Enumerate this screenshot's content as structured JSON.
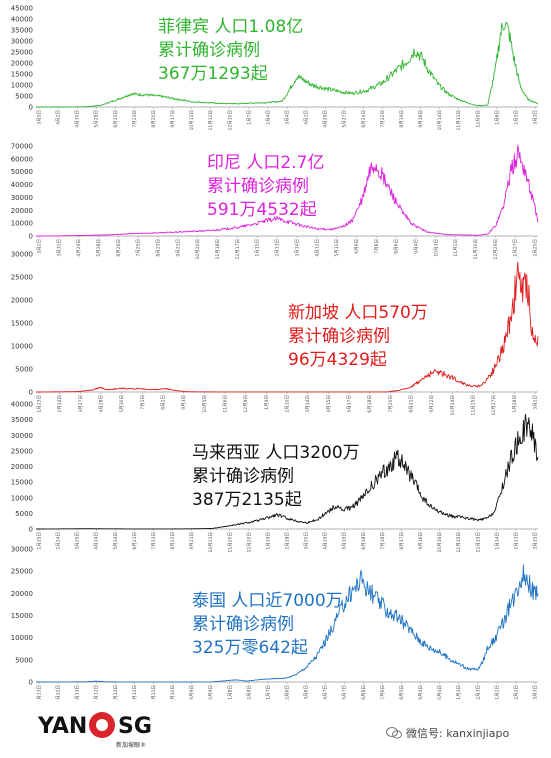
{
  "chart_data": [
    {
      "type": "line",
      "country": "菲律宾",
      "annotation": [
        "菲律宾 人口1.08亿",
        "累计确诊病例",
        "367万1293起"
      ],
      "color": "#2fb52f",
      "ylim": [
        0,
        45000
      ],
      "yticks": [
        0,
        5000,
        10000,
        15000,
        20000,
        25000,
        30000,
        35000,
        40000,
        45000
      ],
      "x_labels": [
        "3月5日",
        "4月2日",
        "4月30日",
        "5月28日",
        "6月25日",
        "7月23日",
        "8月20日",
        "9月17日",
        "10月15日",
        "11月12日",
        "12月10日",
        "1月7日",
        "2月4日",
        "3月4日",
        "4月1日",
        "4月29日",
        "5月27日",
        "6月24日",
        "7月22日",
        "8月19日",
        "9月16日",
        "10月14日",
        "11月11日",
        "12月9日",
        "1月6日",
        "2月3日",
        "3月3日"
      ],
      "keypoints": [
        [
          0,
          0
        ],
        [
          0.06,
          10
        ],
        [
          0.1,
          120
        ],
        [
          0.13,
          800
        ],
        [
          0.16,
          3200
        ],
        [
          0.19,
          6000
        ],
        [
          0.22,
          5500
        ],
        [
          0.25,
          4800
        ],
        [
          0.28,
          3600
        ],
        [
          0.31,
          2400
        ],
        [
          0.34,
          2000
        ],
        [
          0.37,
          1600
        ],
        [
          0.4,
          1500
        ],
        [
          0.43,
          1800
        ],
        [
          0.46,
          2000
        ],
        [
          0.49,
          2600
        ],
        [
          0.5,
          6000
        ],
        [
          0.52,
          14000
        ],
        [
          0.55,
          10000
        ],
        [
          0.58,
          8200
        ],
        [
          0.61,
          6800
        ],
        [
          0.63,
          6200
        ],
        [
          0.66,
          7600
        ],
        [
          0.69,
          11000
        ],
        [
          0.72,
          17000
        ],
        [
          0.74,
          21000
        ],
        [
          0.755,
          26000
        ],
        [
          0.77,
          22000
        ],
        [
          0.78,
          17500
        ],
        [
          0.8,
          10500
        ],
        [
          0.82,
          6200
        ],
        [
          0.84,
          3600
        ],
        [
          0.86,
          1900
        ],
        [
          0.875,
          800
        ],
        [
          0.885,
          600
        ],
        [
          0.9,
          900
        ],
        [
          0.915,
          17000
        ],
        [
          0.925,
          33000
        ],
        [
          0.933,
          39000
        ],
        [
          0.942,
          34000
        ],
        [
          0.952,
          22000
        ],
        [
          0.965,
          9000
        ],
        [
          0.98,
          3500
        ],
        [
          1,
          1500
        ]
      ],
      "noise": 0.12
    },
    {
      "type": "line",
      "country": "印尼",
      "annotation": [
        "印尼  人口2.7亿",
        "累计确诊病例",
        "591万4532起"
      ],
      "color": "#dd22dd",
      "ylim": [
        0,
        70000
      ],
      "yticks": [
        0,
        10000,
        20000,
        30000,
        40000,
        50000,
        60000,
        70000
      ],
      "x_labels": [
        "3月2日",
        "3月31日",
        "4月29日",
        "5月28日",
        "6月26日",
        "7月25日",
        "8月23日",
        "9月21日",
        "10月20日",
        "11月18日",
        "12月17日",
        "1月15日",
        "2月13日",
        "3月14日",
        "4月12日",
        "5月11日",
        "6月9日",
        "7月8日",
        "8月6日",
        "9月4日",
        "10月3日",
        "11月1日",
        "11月30日",
        "12月29日",
        "1月27日",
        "2月25日"
      ],
      "keypoints": [
        [
          0,
          0
        ],
        [
          0.05,
          150
        ],
        [
          0.1,
          500
        ],
        [
          0.15,
          1000
        ],
        [
          0.2,
          2000
        ],
        [
          0.25,
          2500
        ],
        [
          0.3,
          3400
        ],
        [
          0.35,
          4300
        ],
        [
          0.4,
          6500
        ],
        [
          0.43,
          8800
        ],
        [
          0.46,
          12000
        ],
        [
          0.48,
          13500
        ],
        [
          0.5,
          11500
        ],
        [
          0.53,
          8000
        ],
        [
          0.56,
          5500
        ],
        [
          0.59,
          5200
        ],
        [
          0.61,
          7000
        ],
        [
          0.63,
          12000
        ],
        [
          0.65,
          28000
        ],
        [
          0.665,
          50000
        ],
        [
          0.675,
          56000
        ],
        [
          0.69,
          46000
        ],
        [
          0.71,
          32000
        ],
        [
          0.73,
          18000
        ],
        [
          0.75,
          9000
        ],
        [
          0.78,
          3000
        ],
        [
          0.82,
          1000
        ],
        [
          0.86,
          800
        ],
        [
          0.88,
          500
        ],
        [
          0.9,
          1500
        ],
        [
          0.915,
          8000
        ],
        [
          0.93,
          22000
        ],
        [
          0.945,
          48000
        ],
        [
          0.96,
          65000
        ],
        [
          0.975,
          50000
        ],
        [
          0.99,
          28000
        ],
        [
          1,
          12000
        ]
      ],
      "noise": 0.14
    },
    {
      "type": "line",
      "country": "新加坡",
      "annotation": [
        "新加坡  人口570万",
        "累计确诊病例",
        "96万4329起"
      ],
      "color": "#e01b1b",
      "ylim": [
        0,
        30000
      ],
      "yticks": [
        0,
        5000,
        10000,
        15000,
        20000,
        25000,
        30000
      ],
      "x_labels": [
        "1月23日",
        "2月24日",
        "3月27日",
        "4月28日",
        "5月30日",
        "7月1日",
        "8月2日",
        "9月3日",
        "10月5日",
        "11月6日",
        "12月8日",
        "1月9日",
        "2月10日",
        "3月14日",
        "4月15日",
        "5月17日",
        "6月18日",
        "7月20日",
        "8月21日",
        "9月22日",
        "10月24日",
        "11月25日",
        "12月27日",
        "1月28日",
        "3月1日"
      ],
      "keypoints": [
        [
          0,
          0
        ],
        [
          0.08,
          80
        ],
        [
          0.11,
          400
        ],
        [
          0.13,
          1000
        ],
        [
          0.14,
          500
        ],
        [
          0.17,
          800
        ],
        [
          0.2,
          700
        ],
        [
          0.24,
          500
        ],
        [
          0.26,
          700
        ],
        [
          0.28,
          300
        ],
        [
          0.3,
          60
        ],
        [
          0.35,
          30
        ],
        [
          0.5,
          20
        ],
        [
          0.7,
          30
        ],
        [
          0.72,
          300
        ],
        [
          0.74,
          800
        ],
        [
          0.76,
          2000
        ],
        [
          0.78,
          3600
        ],
        [
          0.8,
          4500
        ],
        [
          0.82,
          3600
        ],
        [
          0.84,
          2500
        ],
        [
          0.86,
          1500
        ],
        [
          0.88,
          1200
        ],
        [
          0.89,
          1700
        ],
        [
          0.91,
          4500
        ],
        [
          0.925,
          8000
        ],
        [
          0.935,
          11000
        ],
        [
          0.945,
          16000
        ],
        [
          0.955,
          22000
        ],
        [
          0.962,
          26000
        ],
        [
          0.97,
          21000
        ],
        [
          0.978,
          24000
        ],
        [
          0.985,
          17000
        ],
        [
          0.99,
          11000
        ]
      ],
      "noise": 0.18
    },
    {
      "type": "line",
      "country": "马来西亚",
      "annotation": [
        "马来西亚  人口3200万",
        "累计确诊病例",
        "387万2135起"
      ],
      "color": "#111111",
      "ylim": [
        0,
        40000
      ],
      "yticks": [
        0,
        5000,
        10000,
        15000,
        20000,
        25000,
        30000,
        35000,
        40000
      ],
      "x_labels": [
        "1月25日",
        "2月24日",
        "3月25日",
        "4月24日",
        "5月24日",
        "6月23日",
        "7月23日",
        "8月22日",
        "9月21日",
        "10月21日",
        "11月20日",
        "12月20日",
        "1月19日",
        "2月18日",
        "3月20日",
        "4月19日",
        "5月19日",
        "6月18日",
        "7月18日",
        "8月17日",
        "9月16日",
        "10月16日",
        "11月15日",
        "12月15日",
        "1月14日",
        "2月13日",
        "3月15日"
      ],
      "keypoints": [
        [
          0,
          0
        ],
        [
          0.1,
          100
        ],
        [
          0.2,
          30
        ],
        [
          0.3,
          50
        ],
        [
          0.35,
          150
        ],
        [
          0.38,
          900
        ],
        [
          0.42,
          2000
        ],
        [
          0.45,
          3000
        ],
        [
          0.48,
          4600
        ],
        [
          0.5,
          3500
        ],
        [
          0.52,
          2500
        ],
        [
          0.54,
          2000
        ],
        [
          0.56,
          3000
        ],
        [
          0.58,
          5500
        ],
        [
          0.6,
          7500
        ],
        [
          0.61,
          6000
        ],
        [
          0.63,
          7000
        ],
        [
          0.65,
          10000
        ],
        [
          0.67,
          14000
        ],
        [
          0.69,
          18000
        ],
        [
          0.71,
          21000
        ],
        [
          0.72,
          23500
        ],
        [
          0.735,
          20000
        ],
        [
          0.75,
          16000
        ],
        [
          0.77,
          10000
        ],
        [
          0.79,
          6500
        ],
        [
          0.81,
          5000
        ],
        [
          0.83,
          4000
        ],
        [
          0.85,
          3700
        ],
        [
          0.87,
          3200
        ],
        [
          0.88,
          2800
        ],
        [
          0.9,
          3500
        ],
        [
          0.915,
          6000
        ],
        [
          0.93,
          14000
        ],
        [
          0.945,
          22000
        ],
        [
          0.96,
          28000
        ],
        [
          0.975,
          33000
        ],
        [
          0.99,
          30000
        ],
        [
          1,
          23000
        ]
      ],
      "noise": 0.13
    },
    {
      "type": "line",
      "country": "泰国",
      "annotation": [
        "泰国  人口近7000万",
        "累计确诊病例",
        "325万零642起"
      ],
      "color": "#1f73c4",
      "ylim": [
        0,
        30000
      ],
      "yticks": [
        0,
        5000,
        10000,
        15000,
        20000,
        25000,
        30000
      ],
      "x_labels": [
        "1月13日",
        "2月12日",
        "3月13日",
        "4月12日",
        "5月12日",
        "6月11日",
        "7月11日",
        "8月10日",
        "9月9日",
        "10月9日",
        "11月8日",
        "12月8日",
        "1月7日",
        "2月6日",
        "3月8日",
        "4月7日",
        "5月7日",
        "6月6日",
        "7月6日",
        "8月5日",
        "9月4日",
        "10月4日",
        "11月3日",
        "12月3日",
        "1月2日",
        "2月1日",
        "3月3日"
      ],
      "keypoints": [
        [
          0,
          0
        ],
        [
          0.1,
          50
        ],
        [
          0.12,
          200
        ],
        [
          0.14,
          40
        ],
        [
          0.2,
          20
        ],
        [
          0.3,
          10
        ],
        [
          0.35,
          30
        ],
        [
          0.4,
          500
        ],
        [
          0.42,
          200
        ],
        [
          0.45,
          600
        ],
        [
          0.5,
          900
        ],
        [
          0.52,
          1800
        ],
        [
          0.54,
          3500
        ],
        [
          0.56,
          6000
        ],
        [
          0.58,
          10000
        ],
        [
          0.6,
          14500
        ],
        [
          0.62,
          19000
        ],
        [
          0.64,
          22000
        ],
        [
          0.65,
          23500
        ],
        [
          0.66,
          21000
        ],
        [
          0.68,
          18500
        ],
        [
          0.7,
          16000
        ],
        [
          0.72,
          14500
        ],
        [
          0.74,
          12500
        ],
        [
          0.76,
          10000
        ],
        [
          0.78,
          8000
        ],
        [
          0.8,
          7000
        ],
        [
          0.82,
          5500
        ],
        [
          0.84,
          4200
        ],
        [
          0.86,
          3000
        ],
        [
          0.88,
          2800
        ],
        [
          0.89,
          4500
        ],
        [
          0.9,
          8000
        ],
        [
          0.91,
          9000
        ],
        [
          0.925,
          12000
        ],
        [
          0.94,
          16000
        ],
        [
          0.955,
          20000
        ],
        [
          0.97,
          25000
        ],
        [
          0.98,
          23000
        ],
        [
          0.99,
          20000
        ],
        [
          1,
          21000
        ]
      ],
      "noise": 0.11
    }
  ],
  "footer": {
    "logo_left": "YAN",
    "logo_right": "SG",
    "logo_sub": "新加坡眼®",
    "wechat": "微信号: kanxinjiapo"
  }
}
